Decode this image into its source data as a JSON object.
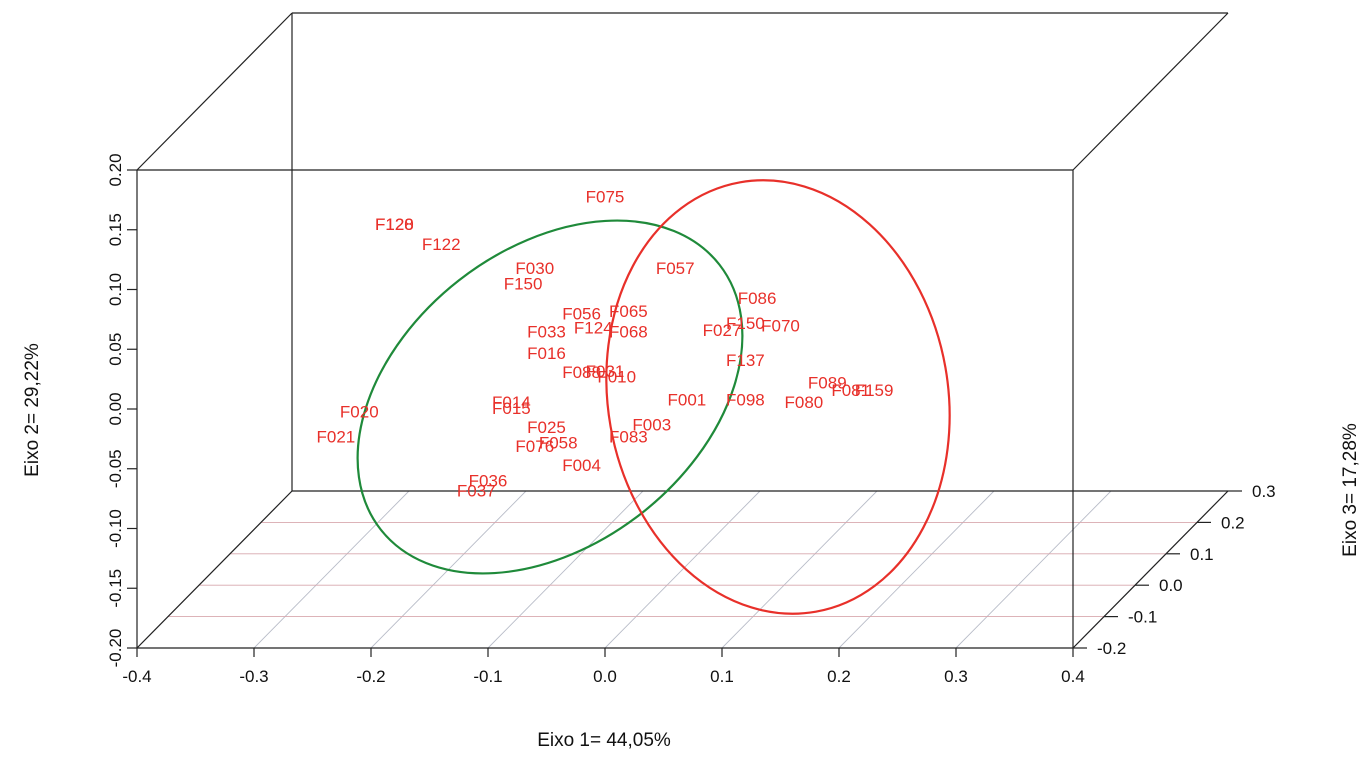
{
  "chart_data": {
    "type": "scatter",
    "title": "",
    "xlabel": "Eixo 1= 44,05%",
    "ylabel": "Eixo 2= 29,22%",
    "zlabel": "Eixo 3= 17,28%",
    "xlim": [
      -0.4,
      0.4
    ],
    "ylim": [
      -0.2,
      0.2
    ],
    "zlim": [
      -0.2,
      0.3
    ],
    "x_ticks": [
      "-0.4",
      "-0.3",
      "-0.2",
      "-0.1",
      "0.0",
      "0.1",
      "0.2",
      "0.3",
      "0.4"
    ],
    "y_ticks": [
      "-0.20",
      "-0.15",
      "-0.10",
      "-0.05",
      "0.00",
      "0.05",
      "0.10",
      "0.15",
      "0.20"
    ],
    "z_ticks": [
      "-0.2",
      "-0.1",
      "0.0",
      "0.1",
      "0.2",
      "0.3"
    ],
    "grid": "floor plane",
    "point_color": "#e8302a",
    "points": [
      {
        "label": "F128",
        "x": -0.18,
        "y": 0.155
      },
      {
        "label": "F120",
        "x": -0.18,
        "y": 0.155
      },
      {
        "label": "F122",
        "x": -0.14,
        "y": 0.138
      },
      {
        "label": "F075",
        "x": 0.0,
        "y": 0.178
      },
      {
        "label": "F030",
        "x": -0.06,
        "y": 0.118
      },
      {
        "label": "F150",
        "x": -0.07,
        "y": 0.105
      },
      {
        "label": "F057",
        "x": 0.06,
        "y": 0.118
      },
      {
        "label": "F086",
        "x": 0.13,
        "y": 0.093
      },
      {
        "label": "F056",
        "x": -0.02,
        "y": 0.08
      },
      {
        "label": "F065",
        "x": 0.02,
        "y": 0.082
      },
      {
        "label": "F150",
        "x": 0.12,
        "y": 0.072
      },
      {
        "label": "F070",
        "x": 0.15,
        "y": 0.07
      },
      {
        "label": "F033",
        "x": -0.05,
        "y": 0.065
      },
      {
        "label": "F124",
        "x": -0.01,
        "y": 0.068
      },
      {
        "label": "F068",
        "x": 0.02,
        "y": 0.065
      },
      {
        "label": "F027",
        "x": 0.1,
        "y": 0.066
      },
      {
        "label": "F016",
        "x": -0.05,
        "y": 0.047
      },
      {
        "label": "F137",
        "x": 0.12,
        "y": 0.041
      },
      {
        "label": "F088",
        "x": -0.02,
        "y": 0.031
      },
      {
        "label": "F031",
        "x": 0.0,
        "y": 0.032
      },
      {
        "label": "F010",
        "x": 0.01,
        "y": 0.027
      },
      {
        "label": "F089",
        "x": 0.19,
        "y": 0.022
      },
      {
        "label": "F081",
        "x": 0.21,
        "y": 0.016
      },
      {
        "label": "F159",
        "x": 0.23,
        "y": 0.016
      },
      {
        "label": "F001",
        "x": 0.07,
        "y": 0.008
      },
      {
        "label": "F098",
        "x": 0.12,
        "y": 0.008
      },
      {
        "label": "F080",
        "x": 0.17,
        "y": 0.006
      },
      {
        "label": "F014",
        "x": -0.08,
        "y": 0.006
      },
      {
        "label": "F015",
        "x": -0.08,
        "y": 0.001
      },
      {
        "label": "F020",
        "x": -0.21,
        "y": -0.002
      },
      {
        "label": "F025",
        "x": -0.05,
        "y": -0.015
      },
      {
        "label": "F003",
        "x": 0.04,
        "y": -0.013
      },
      {
        "label": "F021",
        "x": -0.23,
        "y": -0.023
      },
      {
        "label": "F083",
        "x": 0.02,
        "y": -0.023
      },
      {
        "label": "F058",
        "x": -0.04,
        "y": -0.028
      },
      {
        "label": "F076",
        "x": -0.06,
        "y": -0.031
      },
      {
        "label": "F004",
        "x": -0.02,
        "y": -0.047
      },
      {
        "label": "F036",
        "x": -0.1,
        "y": -0.06
      },
      {
        "label": "F037",
        "x": -0.11,
        "y": -0.068
      }
    ],
    "ellipses": [
      {
        "name": "",
        "color": "#1f8a3a"
      },
      {
        "name": "",
        "color": "#e8302a"
      }
    ]
  }
}
